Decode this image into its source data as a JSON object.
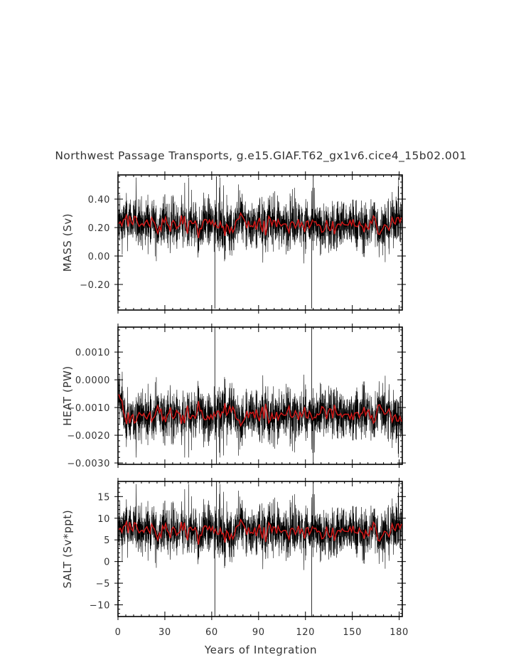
{
  "chart_data": {
    "type": "line",
    "title": "Northwest Passage Transports, g.e15.GIAF.T62_gx1v6.cice4_15b02.001",
    "xlabel": "Years of Integration",
    "xlim": [
      0,
      182
    ],
    "xticks": [
      0,
      30,
      60,
      90,
      120,
      150,
      180
    ],
    "xtick_labels": [
      "0",
      "30",
      "60",
      "90",
      "120",
      "150",
      "180"
    ],
    "series_colors": {
      "monthly": "#000000",
      "annual": "#d01818"
    },
    "panels": [
      {
        "id": "mass",
        "ylabel": "MASS (Sv)",
        "ylim": [
          -0.38,
          0.57
        ],
        "yticks": [
          -0.2,
          0.0,
          0.2,
          0.4
        ],
        "ytick_labels": [
          "−0.20",
          "0.00",
          "0.20",
          "0.40"
        ],
        "mean": 0.215,
        "monthly_std": 0.085,
        "start_value": 0.1,
        "spinup_years": 0,
        "spikes": [
          {
            "x": 62.0,
            "y": -0.37
          },
          {
            "x": 124.0,
            "y": -0.37
          },
          {
            "x": 63.0,
            "y": 0.56
          },
          {
            "x": 125.0,
            "y": 0.56
          }
        ],
        "annual_range": [
          0.13,
          0.31
        ]
      },
      {
        "id": "heat",
        "ylabel": "HEAT (PW)",
        "ylim": [
          -0.00305,
          0.0019
        ],
        "yticks": [
          -0.003,
          -0.002,
          -0.001,
          0.0,
          0.001
        ],
        "ytick_labels": [
          "−0.0030",
          "−0.0020",
          "−0.0010",
          "0.0000",
          "0.0010"
        ],
        "mean": -0.00125,
        "monthly_std": 0.00045,
        "start_value": -0.0002,
        "spinup_years": 5,
        "spikes": [
          {
            "x": 62.0,
            "y": 0.0019
          },
          {
            "x": 124.0,
            "y": 0.0019
          },
          {
            "x": 63.0,
            "y": -0.00305
          },
          {
            "x": 125.0,
            "y": -0.00305
          }
        ],
        "annual_range": [
          -0.0017,
          -0.0008
        ]
      },
      {
        "id": "salt",
        "ylabel": "SALT (Sv*ppt)",
        "ylim": [
          -12.7,
          18.5
        ],
        "yticks": [
          -10,
          -5,
          0,
          5,
          10,
          15
        ],
        "ytick_labels": [
          "−10",
          "−5",
          "0",
          "5",
          "10",
          "15"
        ],
        "mean": 7.0,
        "monthly_std": 2.8,
        "start_value": 3.5,
        "spinup_years": 0,
        "spikes": [
          {
            "x": 62.0,
            "y": -12.6
          },
          {
            "x": 124.0,
            "y": -12.6
          },
          {
            "x": 63.0,
            "y": 18.4
          },
          {
            "x": 125.0,
            "y": 18.4
          }
        ],
        "annual_range": [
          4.0,
          10.0
        ]
      }
    ]
  }
}
